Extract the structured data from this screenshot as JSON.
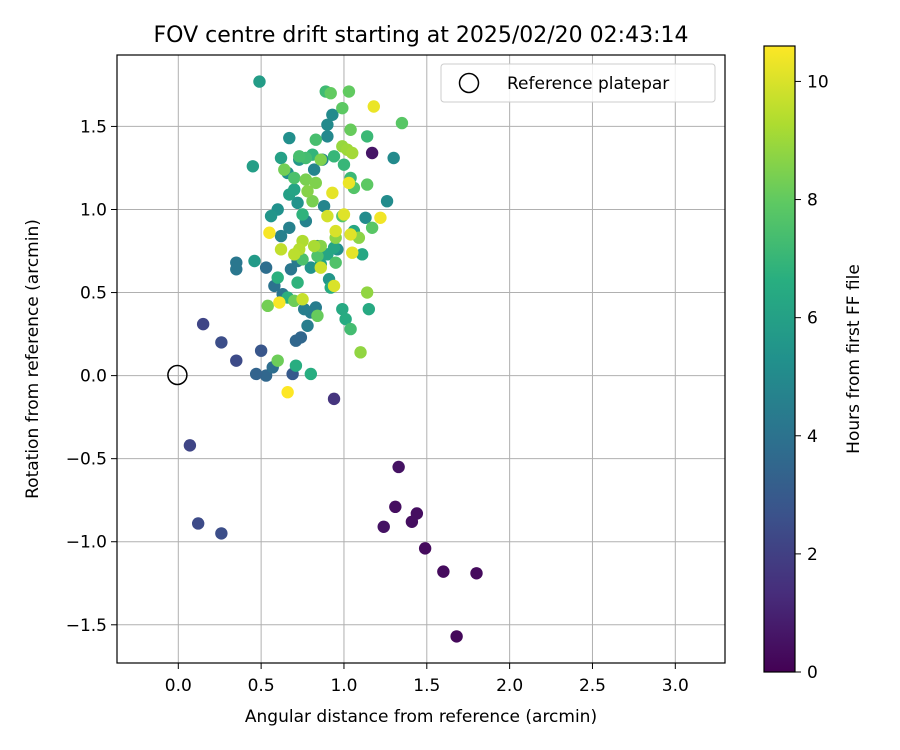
{
  "chart_data": {
    "type": "scatter",
    "title": "FOV centre drift starting at 2025/02/20 02:43:14",
    "xlabel": "Angular distance from reference (arcmin)",
    "ylabel": "Rotation from reference (arcmin)",
    "xlim": [
      -0.37,
      3.3
    ],
    "ylim": [
      -1.73,
      1.93
    ],
    "xticks": [
      "0.0",
      "0.5",
      "1.0",
      "1.5",
      "2.0",
      "2.5",
      "3.0"
    ],
    "xtick_values": [
      0,
      0.5,
      1.0,
      1.5,
      2.0,
      2.5,
      3.0
    ],
    "yticks": [
      "−1.5",
      "−1.0",
      "−0.5",
      "0.0",
      "0.5",
      "1.0",
      "1.5"
    ],
    "ytick_values": [
      -1.5,
      -1.0,
      -0.5,
      0,
      0.5,
      1.0,
      1.5
    ],
    "grid": true,
    "legend": {
      "placement": "top-right",
      "entries": [
        "Reference platepar"
      ]
    },
    "reference_point": {
      "x": 0,
      "y": 0
    },
    "colorbar": {
      "label": "Hours from first FF file",
      "range": [
        0,
        10.6
      ],
      "ticks": [
        "0",
        "2",
        "4",
        "6",
        "8",
        "10"
      ],
      "tick_values": [
        0,
        2,
        4,
        6,
        8,
        10
      ],
      "colormap": "viridis"
    },
    "points": [
      [
        1.68,
        -1.57,
        0.2
      ],
      [
        1.8,
        -1.19,
        0.3
      ],
      [
        1.6,
        -1.18,
        0.3
      ],
      [
        1.49,
        -1.04,
        0.3
      ],
      [
        1.44,
        -0.83,
        0.4
      ],
      [
        1.41,
        -0.88,
        0.4
      ],
      [
        1.31,
        -0.79,
        0.4
      ],
      [
        1.24,
        -0.91,
        0.5
      ],
      [
        1.33,
        -0.55,
        0.5
      ],
      [
        1.17,
        1.34,
        0.6
      ],
      [
        0.94,
        -0.14,
        1.6
      ],
      [
        0.07,
        -0.42,
        2.2
      ],
      [
        0.12,
        -0.89,
        2.4
      ],
      [
        0.26,
        -0.95,
        2.5
      ],
      [
        0.15,
        0.31,
        2.2
      ],
      [
        0.26,
        0.2,
        2.5
      ],
      [
        0.35,
        0.09,
        2.4
      ],
      [
        0.5,
        0.15,
        2.8
      ],
      [
        0.53,
        0.0,
        3.5
      ],
      [
        0.57,
        0.05,
        3.8
      ],
      [
        0.69,
        0.01,
        3.0
      ],
      [
        0.71,
        0.21,
        3.5
      ],
      [
        0.74,
        0.23,
        3.5
      ],
      [
        0.47,
        0.01,
        3.4
      ],
      [
        0.35,
        0.64,
        4.2
      ],
      [
        0.35,
        0.68,
        4.2
      ],
      [
        0.53,
        0.65,
        3.8
      ],
      [
        0.58,
        0.54,
        4.0
      ],
      [
        0.63,
        0.49,
        4.1
      ],
      [
        0.68,
        0.64,
        4.2
      ],
      [
        0.72,
        0.69,
        4.3
      ],
      [
        0.8,
        0.38,
        4.4
      ],
      [
        0.83,
        0.41,
        4.4
      ],
      [
        0.78,
        0.3,
        4.5
      ],
      [
        0.76,
        0.4,
        4.5
      ],
      [
        0.62,
        0.84,
        4.6
      ],
      [
        0.67,
        0.89,
        4.6
      ],
      [
        0.77,
        0.93,
        4.7
      ],
      [
        0.84,
        0.78,
        4.7
      ],
      [
        0.88,
        1.02,
        4.8
      ],
      [
        0.82,
        1.24,
        4.8
      ],
      [
        0.87,
        1.3,
        4.9
      ],
      [
        0.9,
        1.44,
        4.9
      ],
      [
        0.9,
        1.51,
        5.0
      ],
      [
        0.93,
        1.57,
        5.0
      ],
      [
        1.3,
        1.31,
        5.0
      ],
      [
        1.26,
        1.05,
        5.1
      ],
      [
        1.13,
        0.95,
        5.1
      ],
      [
        0.96,
        0.76,
        5.2
      ],
      [
        0.67,
        1.43,
        5.2
      ],
      [
        0.6,
        1.0,
        5.3
      ],
      [
        0.66,
        1.22,
        5.3
      ],
      [
        0.72,
        1.04,
        5.4
      ],
      [
        0.8,
        0.65,
        5.4
      ],
      [
        0.91,
        0.58,
        5.5
      ],
      [
        0.56,
        0.96,
        5.5
      ],
      [
        0.73,
        1.3,
        5.6
      ],
      [
        0.46,
        0.69,
        5.7
      ],
      [
        0.49,
        1.77,
        5.8
      ],
      [
        0.45,
        1.26,
        5.9
      ],
      [
        0.62,
        1.31,
        6.0
      ],
      [
        0.67,
        1.09,
        6.0
      ],
      [
        0.7,
        1.12,
        6.1
      ],
      [
        0.86,
        0.67,
        6.1
      ],
      [
        0.9,
        0.73,
        6.2
      ],
      [
        0.94,
        0.77,
        6.2
      ],
      [
        1.06,
        0.87,
        6.3
      ],
      [
        1.11,
        0.73,
        6.3
      ],
      [
        1.15,
        0.4,
        6.4
      ],
      [
        0.99,
        0.4,
        6.4
      ],
      [
        1.01,
        0.34,
        6.5
      ],
      [
        0.92,
        0.53,
        6.5
      ],
      [
        0.8,
        0.01,
        6.6
      ],
      [
        0.71,
        0.06,
        6.6
      ],
      [
        0.6,
        0.59,
        6.7
      ],
      [
        0.66,
        0.47,
        6.7
      ],
      [
        0.72,
        0.56,
        6.8
      ],
      [
        0.75,
        0.97,
        6.8
      ],
      [
        0.81,
        1.33,
        6.9
      ],
      [
        0.94,
        1.32,
        7.0
      ],
      [
        1.0,
        1.27,
        7.0
      ],
      [
        1.04,
        1.19,
        7.1
      ],
      [
        1.14,
        1.44,
        7.1
      ],
      [
        0.89,
        1.71,
        7.2
      ],
      [
        1.04,
        0.28,
        7.3
      ],
      [
        0.77,
        1.31,
        7.3
      ],
      [
        0.83,
        1.42,
        7.4
      ],
      [
        0.73,
        1.32,
        7.4
      ],
      [
        0.7,
        1.19,
        7.5
      ],
      [
        0.75,
        0.7,
        7.5
      ],
      [
        0.84,
        0.72,
        7.6
      ],
      [
        0.95,
        0.68,
        7.6
      ],
      [
        0.99,
        0.96,
        7.7
      ],
      [
        1.06,
        1.13,
        7.7
      ],
      [
        1.17,
        0.89,
        7.8
      ],
      [
        1.35,
        1.52,
        7.8
      ],
      [
        1.14,
        1.15,
        7.9
      ],
      [
        0.99,
        1.61,
        7.9
      ],
      [
        0.92,
        1.7,
        8.0
      ],
      [
        1.03,
        1.71,
        8.0
      ],
      [
        1.04,
        1.48,
        8.1
      ],
      [
        0.84,
        0.36,
        8.1
      ],
      [
        0.7,
        0.45,
        8.2
      ],
      [
        0.6,
        0.09,
        8.2
      ],
      [
        0.54,
        0.42,
        8.3
      ],
      [
        0.64,
        1.24,
        8.3
      ],
      [
        0.77,
        1.18,
        8.4
      ],
      [
        0.81,
        1.05,
        8.4
      ],
      [
        0.83,
        1.16,
        8.5
      ],
      [
        0.86,
        1.3,
        8.5
      ],
      [
        0.78,
        1.11,
        8.6
      ],
      [
        0.86,
        0.78,
        8.6
      ],
      [
        0.95,
        0.83,
        8.7
      ],
      [
        1.09,
        0.83,
        8.7
      ],
      [
        1.14,
        0.5,
        8.8
      ],
      [
        1.1,
        0.14,
        8.8
      ],
      [
        0.99,
        1.38,
        8.9
      ],
      [
        1.02,
        1.36,
        9.0
      ],
      [
        1.05,
        1.34,
        9.1
      ],
      [
        0.82,
        0.78,
        9.2
      ],
      [
        0.75,
        0.81,
        9.3
      ],
      [
        0.73,
        0.76,
        9.4
      ],
      [
        0.7,
        0.73,
        9.5
      ],
      [
        0.62,
        0.76,
        9.6
      ],
      [
        0.75,
        0.46,
        9.7
      ],
      [
        0.86,
        0.65,
        9.8
      ],
      [
        0.9,
        0.96,
        9.9
      ],
      [
        0.94,
        0.54,
        10.0
      ],
      [
        0.95,
        0.87,
        10.0
      ],
      [
        1.0,
        0.97,
        10.1
      ],
      [
        1.04,
        0.85,
        10.1
      ],
      [
        1.05,
        0.74,
        10.2
      ],
      [
        0.93,
        1.1,
        10.2
      ],
      [
        1.03,
        1.16,
        10.3
      ],
      [
        1.18,
        1.62,
        10.3
      ],
      [
        1.22,
        0.95,
        10.4
      ],
      [
        0.55,
        0.86,
        10.5
      ],
      [
        0.61,
        0.44,
        10.5
      ],
      [
        0.66,
        -0.1,
        10.6
      ]
    ]
  }
}
